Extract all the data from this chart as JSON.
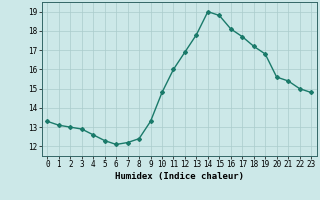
{
  "x": [
    0,
    1,
    2,
    3,
    4,
    5,
    6,
    7,
    8,
    9,
    10,
    11,
    12,
    13,
    14,
    15,
    16,
    17,
    18,
    19,
    20,
    21,
    22,
    23
  ],
  "y": [
    13.3,
    13.1,
    13.0,
    12.9,
    12.6,
    12.3,
    12.1,
    12.2,
    12.4,
    13.3,
    14.8,
    16.0,
    16.9,
    17.8,
    19.0,
    18.8,
    18.1,
    17.7,
    17.2,
    16.8,
    15.6,
    15.4,
    15.0,
    14.8
  ],
  "line_color": "#1a7a6a",
  "marker": "D",
  "marker_size": 2.0,
  "line_width": 1.0,
  "xlabel": "Humidex (Indice chaleur)",
  "xlim": [
    -0.5,
    23.5
  ],
  "ylim": [
    11.5,
    19.5
  ],
  "yticks": [
    12,
    13,
    14,
    15,
    16,
    17,
    18,
    19
  ],
  "xtick_labels": [
    "0",
    "1",
    "2",
    "3",
    "4",
    "5",
    "6",
    "7",
    "8",
    "9",
    "10",
    "11",
    "12",
    "13",
    "14",
    "15",
    "16",
    "17",
    "18",
    "19",
    "20",
    "21",
    "22",
    "23"
  ],
  "bg_color": "#cce8e8",
  "grid_color": "#aacccc",
  "label_fontsize": 6.5,
  "tick_fontsize": 5.5
}
